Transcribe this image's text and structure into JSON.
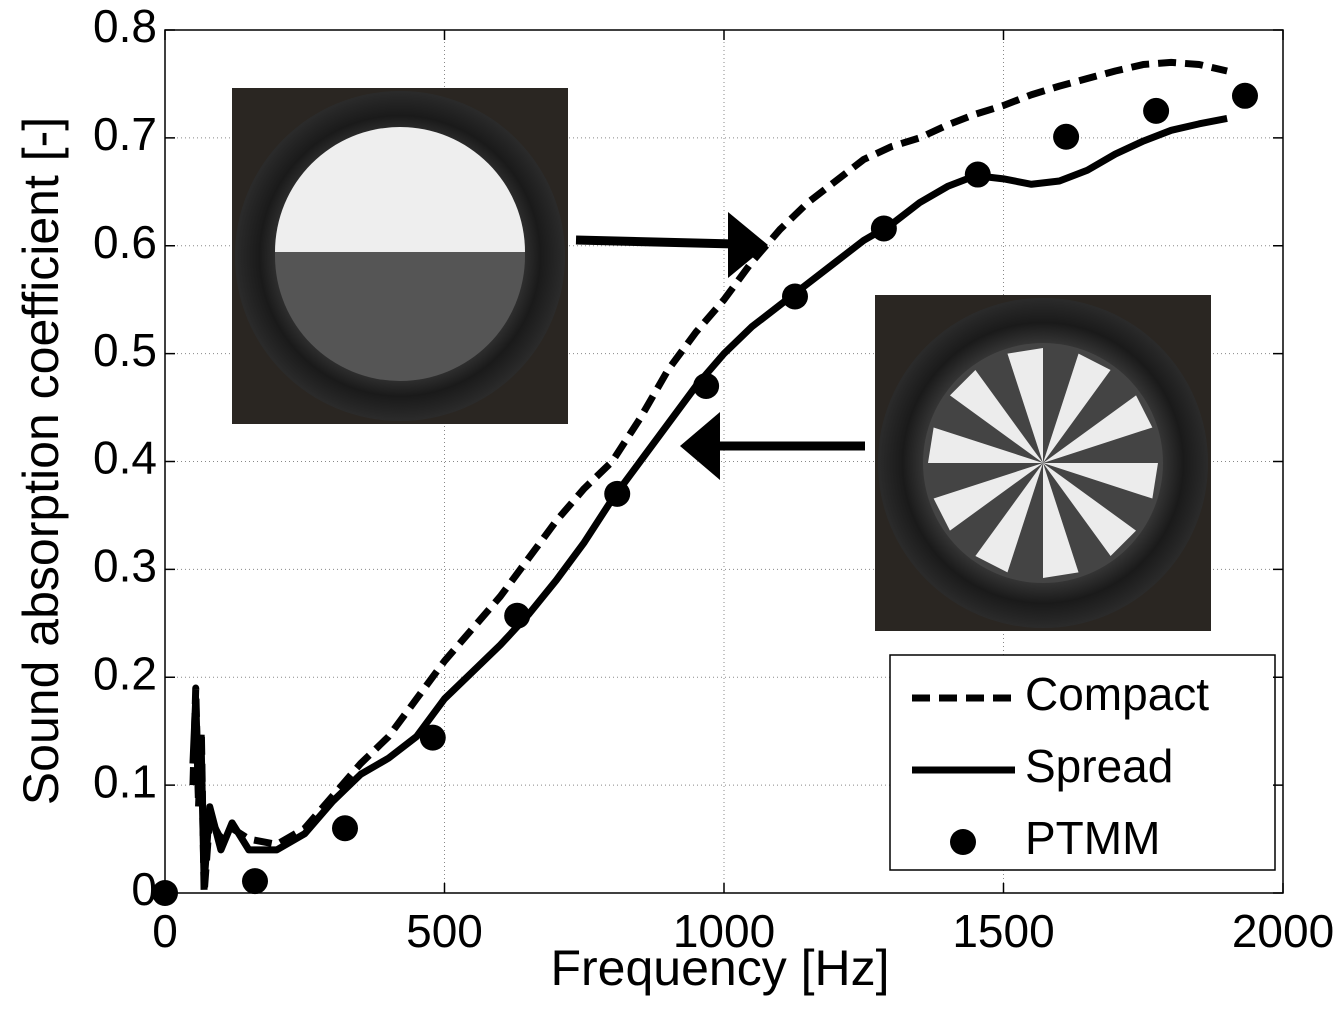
{
  "chart_data": {
    "type": "line",
    "xlabel": "Frequency [Hz]",
    "ylabel": "Sound absorption coefficient [-]",
    "xlim": [
      0,
      2000
    ],
    "xticks": [
      0,
      500,
      1000,
      1500,
      2000
    ],
    "ylim": [
      0,
      0.8
    ],
    "yticks": [
      0,
      0.1,
      0.2,
      0.3,
      0.4,
      0.5,
      0.6,
      0.7,
      0.8
    ],
    "grid": true,
    "legend": "lower right",
    "series": [
      {
        "name": "Compact",
        "color": "#000000",
        "style": "dashed",
        "x": [
          50,
          55,
          60,
          65,
          70,
          80,
          100,
          120,
          150,
          200,
          250,
          300,
          350,
          400,
          450,
          500,
          550,
          600,
          650,
          700,
          750,
          800,
          850,
          900,
          950,
          1000,
          1050,
          1100,
          1150,
          1200,
          1250,
          1300,
          1350,
          1400,
          1450,
          1500,
          1550,
          1600,
          1650,
          1700,
          1750,
          1800,
          1850,
          1900
        ],
        "values": [
          0.1,
          0.19,
          0.08,
          0.15,
          0.0,
          0.07,
          0.05,
          0.06,
          0.05,
          0.045,
          0.06,
          0.09,
          0.12,
          0.145,
          0.18,
          0.215,
          0.245,
          0.275,
          0.31,
          0.345,
          0.375,
          0.4,
          0.44,
          0.485,
          0.52,
          0.55,
          0.585,
          0.615,
          0.64,
          0.66,
          0.68,
          0.692,
          0.7,
          0.712,
          0.722,
          0.73,
          0.74,
          0.748,
          0.755,
          0.762,
          0.768,
          0.77,
          0.768,
          0.762
        ]
      },
      {
        "name": "Spread",
        "color": "#000000",
        "style": "solid",
        "x": [
          50,
          55,
          60,
          65,
          70,
          80,
          100,
          120,
          150,
          200,
          250,
          300,
          350,
          400,
          450,
          500,
          550,
          600,
          650,
          700,
          750,
          800,
          850,
          900,
          950,
          1000,
          1050,
          1100,
          1150,
          1200,
          1250,
          1300,
          1350,
          1400,
          1450,
          1500,
          1550,
          1600,
          1650,
          1700,
          1750,
          1800,
          1850,
          1900
        ],
        "values": [
          0.12,
          0.18,
          0.09,
          0.13,
          0.01,
          0.08,
          0.04,
          0.065,
          0.04,
          0.04,
          0.055,
          0.085,
          0.11,
          0.125,
          0.145,
          0.18,
          0.205,
          0.23,
          0.258,
          0.29,
          0.325,
          0.365,
          0.4,
          0.435,
          0.47,
          0.5,
          0.525,
          0.545,
          0.565,
          0.585,
          0.605,
          0.62,
          0.64,
          0.655,
          0.665,
          0.662,
          0.657,
          0.66,
          0.67,
          0.685,
          0.697,
          0.707,
          0.713,
          0.718
        ]
      },
      {
        "name": "PTMM",
        "color": "#000000",
        "style": "markers",
        "x": [
          0,
          161,
          322,
          479,
          630,
          809,
          968,
          1127,
          1286,
          1454,
          1612,
          1773,
          1932
        ],
        "values": [
          0,
          0.011,
          0.06,
          0.144,
          0.257,
          0.37,
          0.47,
          0.553,
          0.616,
          0.666,
          0.701,
          0.725,
          0.739
        ]
      }
    ]
  }
}
